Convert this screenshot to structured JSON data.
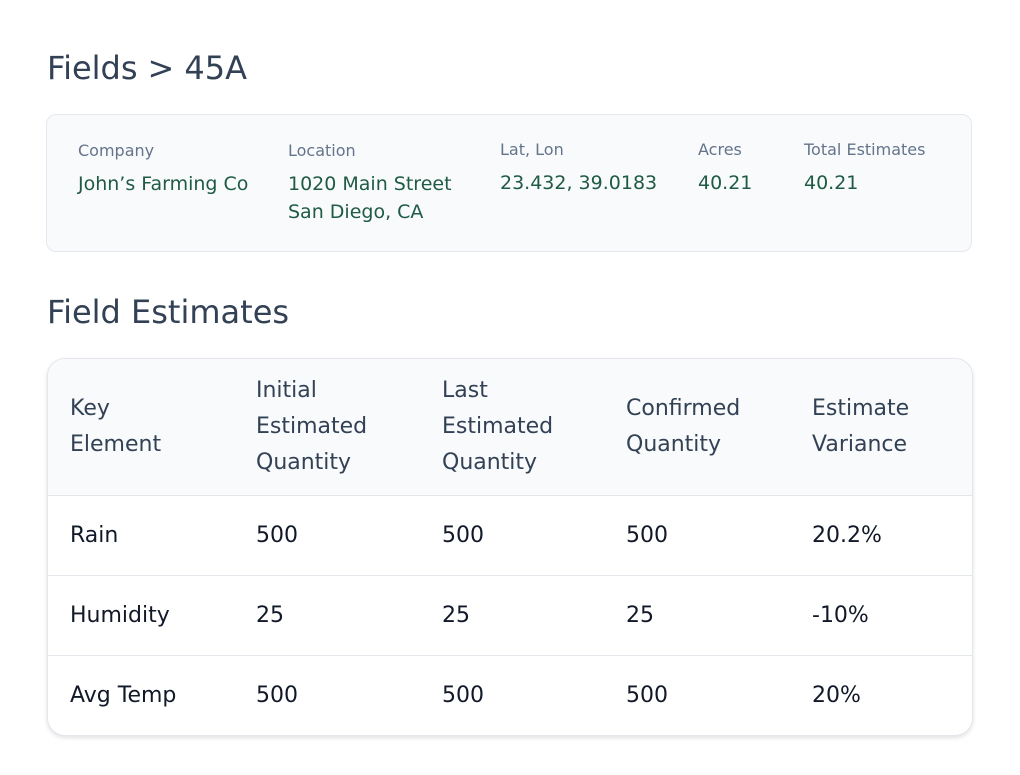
{
  "breadcrumb": {
    "parent": "Fields",
    "separator": ">",
    "current": "45A"
  },
  "field_info": {
    "company": {
      "label": "Company",
      "value": "John’s Farming Co"
    },
    "location": {
      "label": "Location",
      "line1": "1020 Main Street",
      "line2": "San Diego, CA"
    },
    "latlon": {
      "label": "Lat, Lon",
      "value": "23.432, 39.0183"
    },
    "acres": {
      "label": "Acres",
      "value": "40.21"
    },
    "total_estimates": {
      "label": "Total Estimates",
      "value": "40.21"
    }
  },
  "estimates": {
    "title": "Field Estimates",
    "headers": [
      "Key Element",
      "Initial Estimated Quantity",
      "Last Estimated Quantity",
      "Confirmed Quantity",
      "Estimate Variance"
    ],
    "rows": [
      [
        "Rain",
        "500",
        "500",
        "500",
        "20.2%"
      ],
      [
        "Humidity",
        "25",
        "25",
        "25",
        "-10%"
      ],
      [
        "Avg Temp",
        "500",
        "500",
        "500",
        "20%"
      ]
    ]
  }
}
